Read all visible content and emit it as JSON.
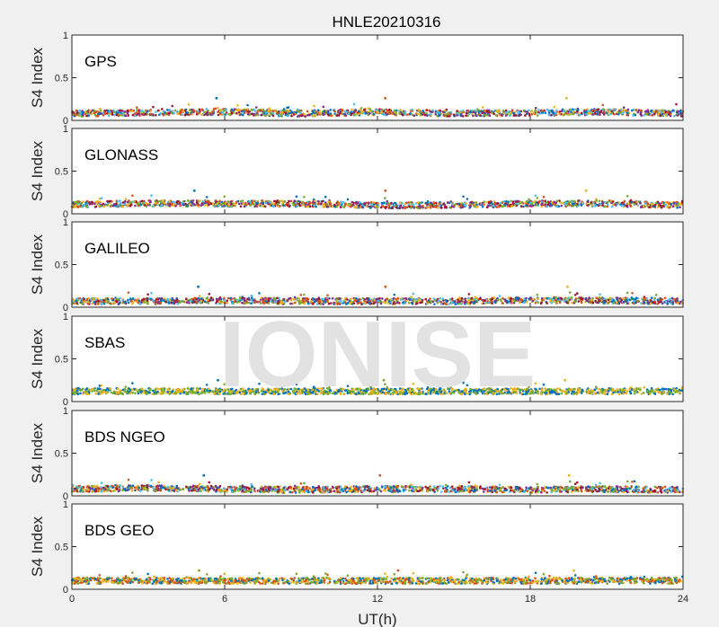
{
  "figure": {
    "title": "HNLE20210316",
    "xlabel": "UT(h)",
    "watermark": "IONISE"
  },
  "chart_data": [
    {
      "type": "scatter",
      "title": "GPS",
      "ylabel": "S4 Index",
      "xlim": [
        0,
        24
      ],
      "ylim": [
        0,
        1
      ],
      "xticks": [
        "0",
        "6",
        "12",
        "18",
        "24"
      ],
      "yticks": [
        "0",
        "0.5",
        "1"
      ],
      "x": [
        0,
        3,
        6,
        9,
        12,
        15,
        18,
        21,
        24
      ],
      "typical_s4": [
        0.08,
        0.09,
        0.1,
        0.08,
        0.1,
        0.08,
        0.09,
        0.1,
        0.08
      ],
      "peak_s4": 0.26,
      "series_colors": [
        "#0072bd",
        "#d95319",
        "#edb120",
        "#7e2f8e",
        "#77ac30",
        "#4dbeee",
        "#a2142f"
      ]
    },
    {
      "type": "scatter",
      "title": "GLONASS",
      "ylabel": "S4 Index",
      "xlim": [
        0,
        24
      ],
      "ylim": [
        0,
        1
      ],
      "xticks": [
        "0",
        "6",
        "12",
        "18",
        "24"
      ],
      "yticks": [
        "0",
        "0.5",
        "1"
      ],
      "x": [
        0,
        3,
        6,
        9,
        12,
        15,
        18,
        21,
        24
      ],
      "typical_s4": [
        0.11,
        0.12,
        0.12,
        0.12,
        0.1,
        0.1,
        0.12,
        0.12,
        0.1
      ],
      "peak_s4": 0.27,
      "series_colors": [
        "#0072bd",
        "#d95319",
        "#edb120",
        "#7e2f8e",
        "#77ac30",
        "#4dbeee",
        "#a2142f"
      ]
    },
    {
      "type": "scatter",
      "title": "GALILEO",
      "ylabel": "S4 Index",
      "xlim": [
        0,
        24
      ],
      "ylim": [
        0,
        1
      ],
      "xticks": [
        "0",
        "6",
        "12",
        "18",
        "24"
      ],
      "yticks": [
        "0",
        "0.5",
        "1"
      ],
      "x": [
        0,
        3,
        6,
        9,
        12,
        15,
        18,
        21,
        24
      ],
      "typical_s4": [
        0.07,
        0.07,
        0.08,
        0.07,
        0.07,
        0.07,
        0.08,
        0.08,
        0.07
      ],
      "peak_s4": 0.24,
      "series_colors": [
        "#0072bd",
        "#d95319",
        "#edb120",
        "#7e2f8e",
        "#77ac30",
        "#4dbeee",
        "#a2142f"
      ]
    },
    {
      "type": "scatter",
      "title": "SBAS",
      "ylabel": "S4 Index",
      "xlim": [
        0,
        24
      ],
      "ylim": [
        0,
        1
      ],
      "xticks": [
        "0",
        "6",
        "12",
        "18",
        "24"
      ],
      "yticks": [
        "0",
        "0.5",
        "1"
      ],
      "x": [
        0,
        3,
        6,
        9,
        12,
        15,
        18,
        21,
        24
      ],
      "typical_s4": [
        0.12,
        0.12,
        0.12,
        0.12,
        0.12,
        0.12,
        0.12,
        0.12,
        0.12
      ],
      "peak_s4": 0.25,
      "series_colors": [
        "#0072bd",
        "#77ac30",
        "#edb120"
      ]
    },
    {
      "type": "scatter",
      "title": "BDS NGEO",
      "ylabel": "S4 Index",
      "xlim": [
        0,
        24
      ],
      "ylim": [
        0,
        1
      ],
      "xticks": [
        "0",
        "6",
        "12",
        "18",
        "24"
      ],
      "yticks": [
        "0",
        "0.5",
        "1"
      ],
      "x": [
        0,
        3,
        6,
        9,
        12,
        15,
        18,
        21,
        24
      ],
      "typical_s4": [
        0.08,
        0.09,
        0.08,
        0.07,
        0.08,
        0.08,
        0.07,
        0.08,
        0.07
      ],
      "peak_s4": 0.24,
      "series_colors": [
        "#0072bd",
        "#d95319",
        "#edb120",
        "#7e2f8e",
        "#77ac30",
        "#4dbeee",
        "#a2142f"
      ]
    },
    {
      "type": "scatter",
      "title": "BDS GEO",
      "ylabel": "S4 Index",
      "xlim": [
        0,
        24
      ],
      "ylim": [
        0,
        1
      ],
      "xticks": [
        "0",
        "6",
        "12",
        "18",
        "24"
      ],
      "yticks": [
        "0",
        "0.5",
        "1"
      ],
      "x": [
        0,
        3,
        6,
        9,
        12,
        15,
        18,
        21,
        24
      ],
      "typical_s4": [
        0.1,
        0.1,
        0.1,
        0.1,
        0.1,
        0.1,
        0.1,
        0.1,
        0.1
      ],
      "peak_s4": 0.22,
      "series_colors": [
        "#77ac30",
        "#d95319",
        "#edb120",
        "#0072bd"
      ]
    }
  ]
}
